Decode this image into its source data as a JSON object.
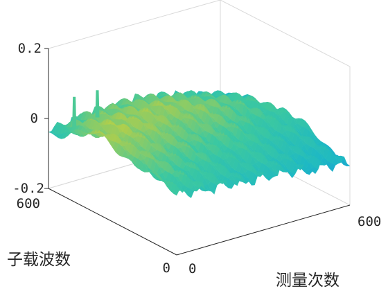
{
  "chart_data": {
    "type": "surface",
    "title": "",
    "xlabel": "测量次数",
    "ylabel": "子载波数",
    "zlabel": "",
    "xlim": [
      0,
      600
    ],
    "ylim": [
      0,
      600
    ],
    "zlim": [
      -0.2,
      0.2
    ],
    "x_ticks": [
      "0",
      "600"
    ],
    "y_ticks": [
      "0",
      "600"
    ],
    "z_ticks": [
      "-0.2",
      "0",
      "0.2"
    ],
    "colormap": "parula",
    "grid": false,
    "series": [
      {
        "description_values": {
          "measurement_index": [
            0,
            60,
            120,
            180,
            240,
            300,
            360,
            420,
            480,
            540,
            600
          ],
          "subcarrier_index": [
            0,
            60,
            120,
            180,
            240,
            300,
            360,
            420,
            480,
            540,
            600
          ],
          "z": [
            [
              -0.03,
              -0.03,
              -0.04,
              -0.04,
              -0.05,
              -0.05,
              -0.05,
              -0.06,
              -0.07,
              -0.07,
              -0.08
            ],
            [
              -0.02,
              -0.02,
              -0.03,
              -0.03,
              -0.04,
              -0.04,
              -0.04,
              -0.05,
              -0.06,
              -0.06,
              -0.07
            ],
            [
              -0.01,
              -0.01,
              -0.02,
              -0.02,
              -0.03,
              -0.03,
              -0.03,
              -0.04,
              -0.05,
              -0.05,
              -0.06
            ],
            [
              0.0,
              0.0,
              -0.01,
              -0.01,
              -0.02,
              -0.02,
              -0.02,
              -0.03,
              -0.04,
              -0.04,
              -0.05
            ],
            [
              0.01,
              0.01,
              0.0,
              0.0,
              -0.01,
              -0.01,
              -0.01,
              -0.02,
              -0.03,
              -0.03,
              -0.04
            ],
            [
              0.02,
              0.02,
              0.01,
              0.01,
              0.0,
              0.0,
              0.0,
              -0.01,
              -0.02,
              -0.02,
              -0.03
            ],
            [
              0.02,
              0.03,
              0.02,
              0.02,
              0.01,
              0.01,
              0.01,
              0.0,
              -0.01,
              -0.02,
              -0.03
            ],
            [
              0.01,
              0.02,
              0.02,
              0.02,
              0.02,
              0.02,
              0.01,
              0.0,
              -0.01,
              -0.02,
              -0.04
            ],
            [
              0.0,
              0.01,
              0.01,
              0.01,
              0.01,
              0.01,
              0.0,
              -0.01,
              -0.02,
              -0.03,
              -0.05
            ],
            [
              -0.02,
              -0.01,
              0.0,
              0.0,
              0.0,
              0.0,
              -0.01,
              -0.02,
              -0.03,
              -0.05,
              -0.07
            ],
            [
              -0.04,
              -0.03,
              -0.02,
              -0.02,
              -0.02,
              -0.02,
              -0.03,
              -0.04,
              -0.05,
              -0.07,
              -0.09
            ]
          ]
        },
        "spikes": [
          {
            "measurement_index": 30,
            "subcarrier_index": 520,
            "z": 0.08
          },
          {
            "measurement_index": 110,
            "subcarrier_index": 520,
            "z": 0.08
          }
        ]
      }
    ]
  }
}
